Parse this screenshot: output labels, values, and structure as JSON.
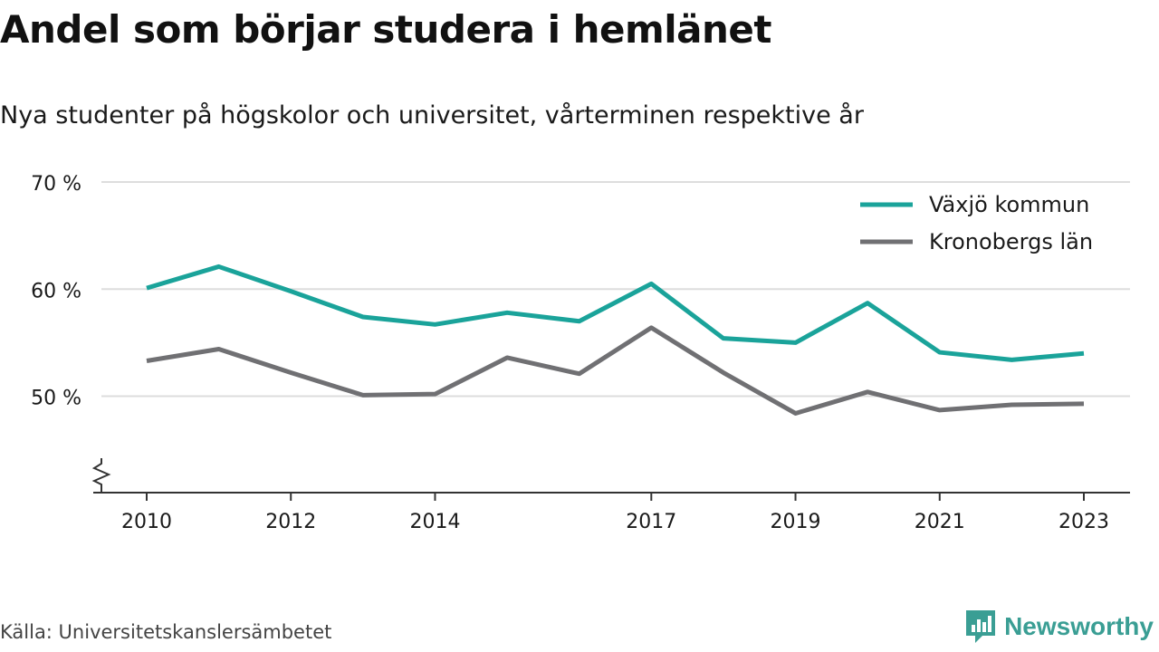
{
  "title": "Andel som börjar studera i hemlänet",
  "subtitle": "Nya studenter på högskolor och universitet, vårterminen respektive år",
  "source": "Källa: Universitetskanslersämbetet",
  "brand": {
    "name": "Newsworthy",
    "logo_icon": "bar-chart-speech-bubble-icon",
    "color": "#3a9e94"
  },
  "colors": {
    "series_1": "#1aa39a",
    "series_2": "#707073",
    "grid": "#dddddd",
    "axis": "#333333",
    "text": "#1a1a1a"
  },
  "chart_data": {
    "type": "line",
    "title": "Andel som börjar studera i hemlänet",
    "subtitle": "Nya studenter på högskolor och universitet, vårterminen respektive år",
    "x": [
      2010,
      2011,
      2012,
      2013,
      2014,
      2015,
      2016,
      2017,
      2018,
      2019,
      2020,
      2021,
      2022,
      2023
    ],
    "x_ticks": [
      2010,
      2012,
      2014,
      2017,
      2019,
      2021,
      2023
    ],
    "y_ticks": [
      50,
      60,
      70
    ],
    "y_tick_labels": [
      "50 %",
      "60 %",
      "70 %"
    ],
    "ylim": [
      41,
      70
    ],
    "y_axis_break": true,
    "grid": true,
    "legend_position": "top-right",
    "series": [
      {
        "name": "Växjö kommun",
        "color": "#1aa39a",
        "values": [
          60.1,
          62.1,
          59.8,
          57.4,
          56.7,
          57.8,
          57.0,
          60.5,
          55.4,
          55.0,
          58.7,
          54.1,
          53.4,
          54.0
        ]
      },
      {
        "name": "Kronobergs län",
        "color": "#707073",
        "values": [
          53.3,
          54.4,
          52.2,
          50.1,
          50.2,
          53.6,
          52.1,
          56.4,
          52.2,
          48.4,
          50.4,
          48.7,
          49.2,
          49.3
        ]
      }
    ]
  }
}
